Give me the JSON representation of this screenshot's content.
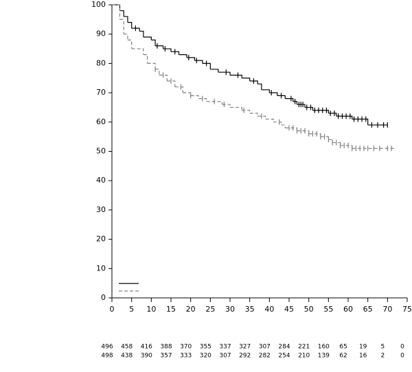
{
  "chart_data": {
    "type": "km",
    "xlim": [
      0,
      75
    ],
    "xticks": [
      0,
      5,
      10,
      15,
      20,
      25,
      30,
      35,
      40,
      45,
      50,
      55,
      60,
      65,
      70,
      75
    ],
    "ylim": [
      0,
      100
    ],
    "yticks": [
      0,
      10,
      20,
      30,
      40,
      50,
      60,
      70,
      80,
      90,
      100
    ],
    "series": [
      {
        "color": "#000000",
        "dash": false,
        "x": [
          0,
          2,
          3,
          4,
          5,
          7,
          8,
          10,
          11,
          13,
          15,
          17,
          19,
          21,
          23,
          25,
          27,
          30,
          33,
          35,
          37,
          38,
          40,
          42,
          44,
          46,
          47,
          49,
          51,
          55,
          57,
          61,
          65,
          70
        ],
        "values": [
          100,
          98,
          96,
          94,
          92,
          91,
          89,
          88,
          86,
          85,
          84,
          83,
          82,
          81,
          80,
          78,
          77,
          76,
          75,
          74,
          73,
          71,
          70,
          69,
          68,
          67,
          66,
          65,
          64,
          63,
          62,
          61,
          59,
          59
        ],
        "censor_x": [
          6,
          11.5,
          13.5,
          16,
          19.5,
          21.5,
          24,
          29,
          32,
          36,
          40.5,
          43,
          45.5,
          46.5,
          47.5,
          48,
          48.5,
          49.5,
          50.5,
          51.5,
          52.5,
          53.5,
          54.5,
          55.5,
          56.5,
          57.5,
          58.5,
          59.5,
          60.5,
          61.5,
          62.5,
          63.5,
          64.5,
          66,
          67.5,
          69,
          70
        ],
        "at_risk": [
          496,
          458,
          416,
          388,
          370,
          355,
          337,
          327,
          307,
          284,
          221,
          160,
          65,
          19,
          5,
          0
        ]
      },
      {
        "color": "#808080",
        "dash": true,
        "x": [
          0,
          2,
          3,
          4,
          5,
          8,
          9,
          11,
          12,
          14,
          16,
          18,
          20,
          22,
          24,
          28,
          30,
          33,
          35,
          37,
          39,
          41,
          43,
          44,
          47,
          50,
          53,
          55,
          56,
          58,
          61,
          72
        ],
        "values": [
          100,
          95,
          90,
          88,
          85,
          83,
          80,
          78,
          76,
          74,
          72,
          70,
          69,
          68,
          67,
          66,
          65,
          64,
          63,
          62,
          61,
          60,
          59,
          58,
          57,
          56,
          55,
          54,
          53,
          52,
          51,
          51
        ],
        "censor_x": [
          11,
          13,
          15,
          17.5,
          20,
          23,
          26,
          28.5,
          33.5,
          38,
          42.5,
          45,
          46,
          47,
          48,
          49,
          50,
          51,
          52,
          53,
          54,
          55,
          56,
          57,
          58,
          59,
          60,
          61,
          62,
          63,
          64,
          65,
          66.5,
          68,
          70,
          71
        ],
        "at_risk": [
          498,
          438,
          390,
          357,
          333,
          320,
          307,
          292,
          282,
          254,
          210,
          139,
          62,
          16,
          2,
          0
        ]
      }
    ]
  }
}
